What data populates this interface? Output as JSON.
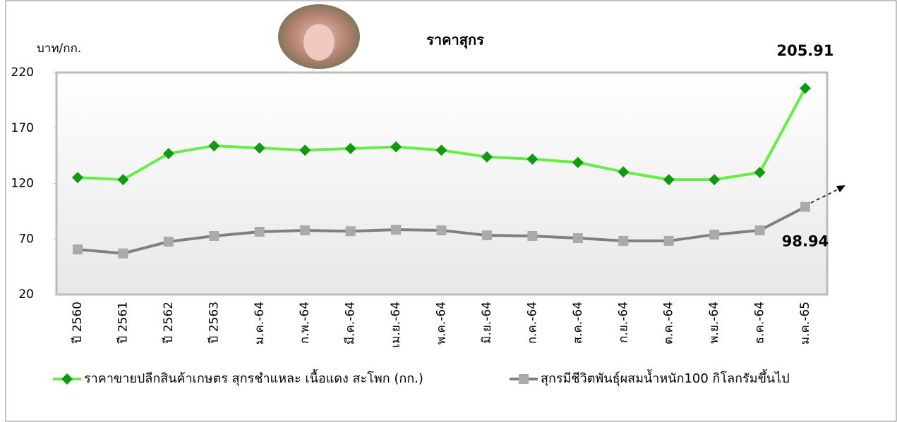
{
  "chart_data": {
    "type": "line",
    "title": "ราคาสุกร",
    "y_axis_label": "บาท/กก.",
    "categories": [
      "ปี 2560",
      "ปี 2561",
      "ปี 2562",
      "ปี 2563",
      "ม.ค.-64",
      "ก.พ.-64",
      "มี.ค.-64",
      "เม.ย.-64",
      "พ.ค.-64",
      "มิ.ย.-64",
      "ก.ค.-64",
      "ส.ค.-64",
      "ก.ย.-64",
      "ต.ค.-64",
      "พ.ย.-64",
      "ธ.ค.-64",
      "ม.ค.-65"
    ],
    "series": [
      {
        "name": "ราคาขายปลีกสินค้าเกษตร สุกรชำแหละ เนื้อแดง สะโพก (กก.)",
        "color": "#66ee44",
        "marker_color": "#119911",
        "marker": "diamond",
        "values": [
          125.4,
          123.5,
          147,
          154,
          152,
          150,
          151.5,
          153,
          150,
          144,
          142,
          139,
          130.5,
          123.5,
          123.5,
          130,
          205.91
        ]
      },
      {
        "name": "สุกรมีชีวิตพันธุ์ผสมน้ำหนัก100 กิโลกรัมขึ้นไป",
        "color": "#808080",
        "marker_color": "#aaaaaa",
        "marker": "square",
        "values": [
          60.6,
          57,
          67.6,
          72.7,
          76.5,
          77.8,
          77,
          78.4,
          77.8,
          73.3,
          72.7,
          70.8,
          68.3,
          68.3,
          74,
          77.8,
          98.94
        ]
      }
    ],
    "ylim": [
      20,
      220
    ],
    "yticks": [
      20,
      70,
      120,
      170,
      220
    ],
    "legend": "bottom"
  }
}
